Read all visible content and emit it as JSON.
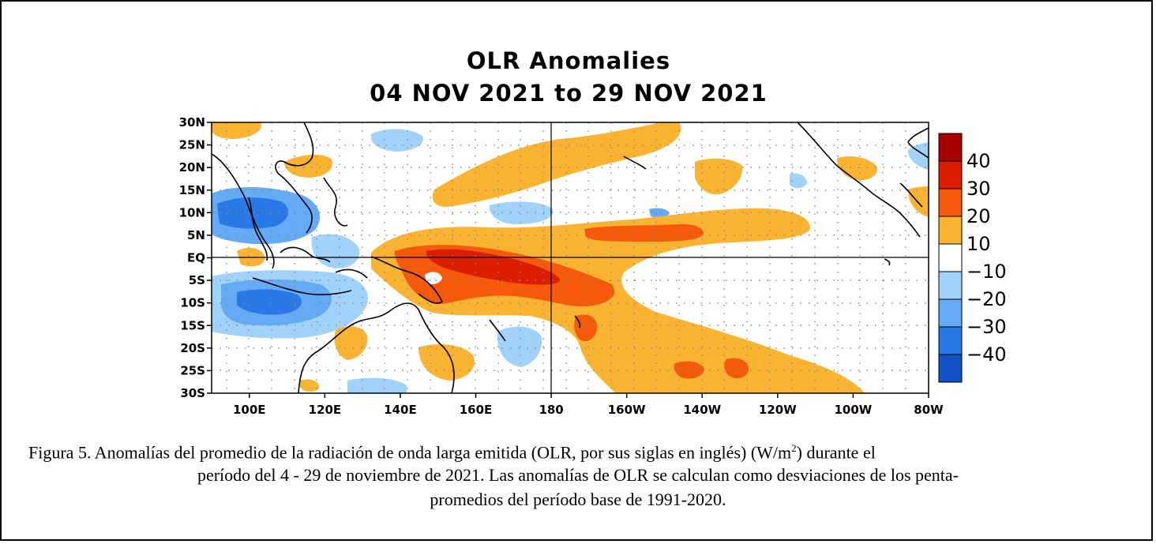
{
  "chart_data": {
    "type": "heatmap",
    "title": "OLR Anomalies",
    "subtitle": "04 NOV 2021 to 29 NOV 2021",
    "x_ticks": [
      "100E",
      "120E",
      "140E",
      "160E",
      "180",
      "160W",
      "140W",
      "120W",
      "100W",
      "80W"
    ],
    "y_ticks": [
      "30N",
      "25N",
      "20N",
      "15N",
      "10N",
      "5N",
      "EQ",
      "5S",
      "10S",
      "15S",
      "20S",
      "25S",
      "30S"
    ],
    "x_range_deg_east": [
      90,
      280
    ],
    "y_range_deg_lat": [
      30,
      -30
    ],
    "reference_lines": [
      "EQ",
      "180"
    ],
    "grid": "dotted",
    "colorbar": {
      "ticks": [
        "40",
        "30",
        "20",
        "10",
        "−10",
        "−20",
        "−30",
        "−40"
      ],
      "colors": [
        "#a40000",
        "#dc1e00",
        "#f55a0a",
        "#fab432",
        "#ffffff",
        "#a0d2fa",
        "#64aaf5",
        "#2878e6",
        "#1450c8"
      ],
      "placement": "right"
    },
    "regions": [
      {
        "lon": 100,
        "lat": 10,
        "value": -35
      },
      {
        "lon": 108,
        "lat": -8,
        "value": -35
      },
      {
        "lon": 125,
        "lat": 1,
        "value": -25
      },
      {
        "lon": 160,
        "lat": -3,
        "value": 35
      },
      {
        "lon": 175,
        "lat": -5,
        "value": 30
      },
      {
        "lon": 210,
        "lat": 5,
        "value": 25
      },
      {
        "lon": 200,
        "lat": 20,
        "value": 15
      },
      {
        "lon": 230,
        "lat": -22,
        "value": 25
      },
      {
        "lon": 250,
        "lat": -25,
        "value": 15
      },
      {
        "lon": 150,
        "lat": -14,
        "value": -15
      }
    ]
  },
  "caption": {
    "line1_pre": "Figura 5. Anomalías del promedio de la radiación de onda larga emitida (OLR, por sus siglas en inglés) (W/m",
    "line1_sup": "2",
    "line1_post": ") durante el",
    "line2": "período del 4 - 29 de noviembre de 2021.  Las anomalías de OLR se calculan como desviaciones de los penta-",
    "line3": "promedios del período base de 1991-2020."
  }
}
